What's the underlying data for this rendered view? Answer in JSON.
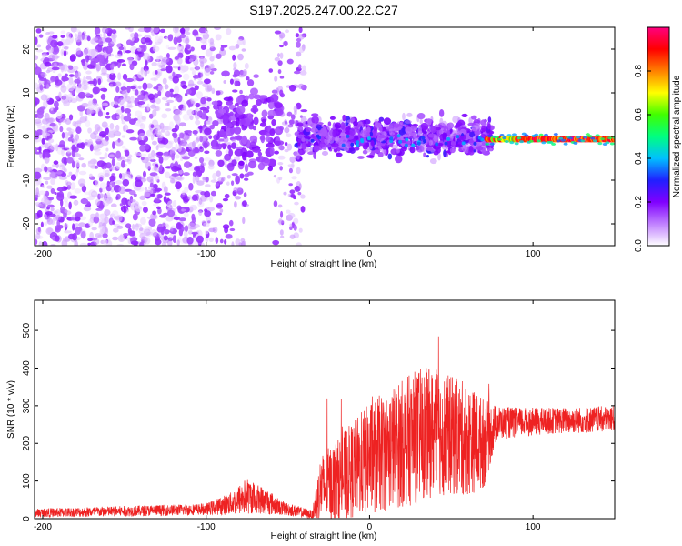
{
  "title": "S197.2025.247.00.22.C27",
  "colorbar": {
    "label": "Normalized spectral amplitude",
    "ticks": [
      "0.0",
      "0.2",
      "0.4",
      "0.6",
      "0.8"
    ],
    "tick_values": [
      0.0,
      0.2,
      0.4,
      0.6,
      0.8
    ],
    "range": [
      0,
      1
    ],
    "colors": [
      "#ffffff",
      "#c080ff",
      "#8000ff",
      "#2020ff",
      "#00c0ff",
      "#00ff80",
      "#40ff00",
      "#ffff00",
      "#ff8000",
      "#ff0000",
      "#ff0080"
    ]
  },
  "series_color": "#ee2222",
  "chart_data": [
    {
      "type": "heatmap",
      "xlabel": "Height of straight line (km)",
      "ylabel": "Frequency (Hz)",
      "xlim": [
        -205,
        150
      ],
      "ylim": [
        -25,
        25
      ],
      "xticks": [
        -200,
        -100,
        0,
        100
      ],
      "xtick_labels": [
        "-200",
        "-100",
        "0",
        "100"
      ],
      "yticks": [
        -20,
        -10,
        0,
        10,
        20
      ],
      "ytick_labels": [
        "-20",
        "-10",
        "0",
        "10",
        "20"
      ],
      "regions": [
        {
          "name": "diffuse noise",
          "x": [
            -205,
            -97
          ],
          "freq": [
            -25,
            25
          ],
          "amplitude": 0.15
        },
        {
          "name": "noise gap",
          "x": [
            -97,
            -40
          ],
          "freq": [
            -25,
            25
          ],
          "amplitude": 0.08
        },
        {
          "name": "scattered signal band",
          "x": [
            -45,
            75
          ],
          "freq": [
            -8,
            8
          ],
          "amplitude": 0.25
        },
        {
          "name": "coherent line near 0 Hz",
          "x": [
            72,
            150
          ],
          "freq": [
            -1,
            1
          ],
          "amplitude": 0.95
        }
      ]
    },
    {
      "type": "line",
      "xlabel": "Height of straight line (km)",
      "ylabel": "SNR (10 * v/v)",
      "xlim": [
        -205,
        150
      ],
      "ylim": [
        0,
        580
      ],
      "xticks": [
        -200,
        -100,
        0,
        100
      ],
      "xtick_labels": [
        "-200",
        "-100",
        "0",
        "100"
      ],
      "yticks": [
        0,
        100,
        200,
        300,
        400,
        500
      ],
      "ytick_labels": [
        "0",
        "100",
        "200",
        "300",
        "400",
        "500"
      ],
      "envelope": {
        "x": [
          -205,
          -150,
          -100,
          -85,
          -75,
          -70,
          -62,
          -55,
          -45,
          -35,
          -30,
          -20,
          -10,
          0,
          10,
          20,
          30,
          40,
          50,
          60,
          70,
          78,
          90,
          110,
          130,
          150
        ],
        "base": [
          15,
          20,
          25,
          40,
          60,
          55,
          45,
          30,
          20,
          10,
          80,
          100,
          130,
          160,
          180,
          200,
          220,
          230,
          220,
          210,
          200,
          255,
          255,
          260,
          262,
          265
        ],
        "spread": [
          12,
          14,
          15,
          30,
          50,
          40,
          35,
          20,
          15,
          12,
          90,
          110,
          130,
          150,
          160,
          170,
          180,
          170,
          160,
          150,
          120,
          45,
          40,
          35,
          35,
          35
        ]
      }
    }
  ]
}
